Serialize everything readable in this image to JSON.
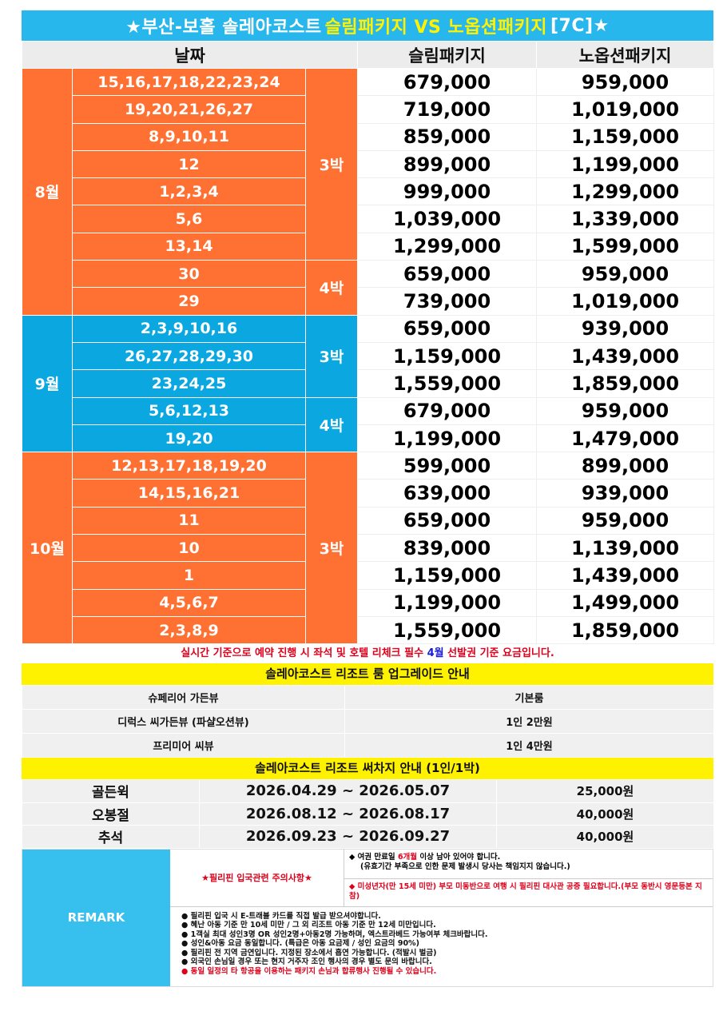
{
  "title": {
    "pre": "★부산-보홀 솔레아코스트 ",
    "highlight": "슬림패키지 VS 노옵션패키지",
    "post": " [7C]★"
  },
  "headers": {
    "date": "날짜",
    "slim": "슬림패키지",
    "noopt": "노옵션패키지"
  },
  "months": [
    {
      "month": "8월",
      "groups": [
        {
          "nights": "3박",
          "rows": [
            {
              "dates": "15,16,17,18,22,23,24",
              "slim": "679,000",
              "noopt": "959,000"
            },
            {
              "dates": "19,20,21,26,27",
              "slim": "719,000",
              "noopt": "1,019,000"
            },
            {
              "dates": "8,9,10,11",
              "slim": "859,000",
              "noopt": "1,159,000"
            },
            {
              "dates": "12",
              "slim": "899,000",
              "noopt": "1,199,000"
            },
            {
              "dates": "1,2,3,4",
              "slim": "999,000",
              "noopt": "1,299,000"
            },
            {
              "dates": "5,6",
              "slim": "1,039,000",
              "noopt": "1,339,000"
            },
            {
              "dates": "13,14",
              "slim": "1,299,000",
              "noopt": "1,599,000"
            }
          ]
        },
        {
          "nights": "4박",
          "rows": [
            {
              "dates": "30",
              "slim": "659,000",
              "noopt": "959,000"
            },
            {
              "dates": "29",
              "slim": "739,000",
              "noopt": "1,019,000"
            }
          ]
        }
      ]
    },
    {
      "month": "9월",
      "groups": [
        {
          "nights": "3박",
          "rows": [
            {
              "dates": "2,3,9,10,16",
              "slim": "659,000",
              "noopt": "939,000"
            },
            {
              "dates": "26,27,28,29,30",
              "slim": "1,159,000",
              "noopt": "1,439,000"
            },
            {
              "dates": "23,24,25",
              "slim": "1,559,000",
              "noopt": "1,859,000"
            }
          ]
        },
        {
          "nights": "4박",
          "rows": [
            {
              "dates": "5,6,12,13",
              "slim": "679,000",
              "noopt": "959,000"
            },
            {
              "dates": "19,20",
              "slim": "1,199,000",
              "noopt": "1,479,000"
            }
          ]
        }
      ]
    },
    {
      "month": "10월",
      "groups": [
        {
          "nights": "3박",
          "rows": [
            {
              "dates": "12,13,17,18,19,20",
              "slim": "599,000",
              "noopt": "899,000"
            },
            {
              "dates": "14,15,16,21",
              "slim": "639,000",
              "noopt": "939,000"
            },
            {
              "dates": "11",
              "slim": "659,000",
              "noopt": "959,000"
            },
            {
              "dates": "10",
              "slim": "839,000",
              "noopt": "1,139,000"
            },
            {
              "dates": "1",
              "slim": "1,159,000",
              "noopt": "1,439,000"
            },
            {
              "dates": "4,5,6,7",
              "slim": "1,199,000",
              "noopt": "1,499,000"
            },
            {
              "dates": "2,3,8,9",
              "slim": "1,559,000",
              "noopt": "1,859,000"
            }
          ]
        }
      ]
    }
  ],
  "notice": {
    "part1": "실시간 기준으로 예약 진행 시 좌석 및 호텔 리체크 필수 ",
    "part2": "4월",
    "part3": " 선발권 기준 요금입니다."
  },
  "upgrade": {
    "title": "솔레아코스트 리조트 룸 업그레이드 안내",
    "rows": [
      {
        "room": "슈페리어 가든뷰",
        "price": "기본룸"
      },
      {
        "room": "디럭스 씨가든뷰 (파샬오션뷰)",
        "price": "1인 2만원"
      },
      {
        "room": "프리미어 씨뷰",
        "price": "1인 4만원"
      }
    ]
  },
  "surcharge": {
    "title": "솔레아코스트 리조트 써차지 안내 (1인/1박)",
    "rows": [
      {
        "name": "골든윅",
        "period": "2026.04.29 ~ 2026.05.07",
        "price": "25,000원"
      },
      {
        "name": "오봉절",
        "period": "2026.08.12 ~ 2026.08.17",
        "price": "40,000원"
      },
      {
        "name": "추석",
        "period": "2026.09.23 ~ 2026.09.27",
        "price": "40,000원"
      }
    ]
  },
  "remark": {
    "label": "REMARK",
    "title": "★필리핀 입국관련 주의사항★",
    "note1_a": "◆ 여권 만료일 ",
    "note1_b": "6개월",
    "note1_c": " 이상 남아 있어야 합니다.",
    "note1_sub": "(유효기간 부족으로 인한 문제 발생시 당사는 책임지지 않습니다.)",
    "note2": "◆ 미성년자(만 15세 미만) 부모 미동반으로 여행 시 필리핀 대사관 공증 필요합니다.(부모 동반시 영문등본 지참)",
    "list": [
      "필리핀 입국 시 E-트래블 카드를 직접 발급 받으셔야합니다.",
      "혜난 아동 기준 만 10세 미만 / 그 외 리조트 아동 기준 만 12세 미만입니다.",
      "1객실 최대 성인3명 OR 성인2명+아동2명 가능하며, 엑스트라베드 가능여부 체크바랍니다.",
      "성인&아동 요금 동일합니다. (특급은 아동 요금제 / 성인 요금의 90%)",
      "필리핀 전 지역 금연입니다. 지정된 장소에서 흡연 가능합니다. (적발시 벌금)",
      "외국인 손님일 경우 또는 현지 거주자 조인 행사의 경우 별도 문의 바랍니다.",
      "동일 일정의 타 항공을 이용하는 패키지 손님과 합류행사 진행될 수 있습니다."
    ]
  },
  "colors": {
    "orange": "#FF7133",
    "blue": "#0AA7E0",
    "header": "#28B7EC",
    "yellow": "#FFF200",
    "red": "#E0001B"
  }
}
